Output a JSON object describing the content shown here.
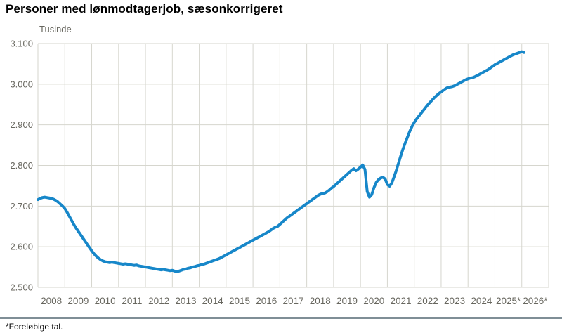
{
  "header": {
    "title": "Personer med lønmodtagerjob, sæsonkorrigeret"
  },
  "footer": {
    "note": "*Foreløbige tal."
  },
  "chart_data": {
    "type": "line",
    "title": "Personer med lønmodtagerjob, sæsonkorrigeret",
    "ylabel": "Tusinde",
    "series_name": "Personer med lønmodtagerjob, sæsonkorrigeret (tusinde)",
    "frequency": "monthly",
    "start": "2008-01",
    "end": "2026-02",
    "values": [
      2716,
      2719,
      2721,
      2722,
      2721,
      2720,
      2719,
      2717,
      2714,
      2710,
      2705,
      2700,
      2694,
      2685,
      2675,
      2665,
      2655,
      2646,
      2638,
      2630,
      2622,
      2614,
      2606,
      2598,
      2590,
      2583,
      2577,
      2572,
      2568,
      2565,
      2563,
      2562,
      2561,
      2562,
      2561,
      2560,
      2559,
      2558,
      2557,
      2558,
      2557,
      2556,
      2555,
      2554,
      2555,
      2553,
      2552,
      2551,
      2550,
      2549,
      2548,
      2547,
      2546,
      2545,
      2544,
      2543,
      2544,
      2543,
      2542,
      2541,
      2542,
      2540,
      2539,
      2540,
      2542,
      2544,
      2545,
      2547,
      2548,
      2550,
      2551,
      2553,
      2554,
      2556,
      2557,
      2559,
      2561,
      2563,
      2565,
      2567,
      2569,
      2571,
      2574,
      2577,
      2580,
      2583,
      2586,
      2589,
      2592,
      2595,
      2598,
      2601,
      2604,
      2607,
      2610,
      2613,
      2616,
      2619,
      2622,
      2625,
      2628,
      2631,
      2634,
      2637,
      2641,
      2645,
      2648,
      2650,
      2655,
      2660,
      2665,
      2670,
      2674,
      2678,
      2682,
      2686,
      2690,
      2694,
      2698,
      2702,
      2706,
      2710,
      2714,
      2718,
      2722,
      2726,
      2729,
      2731,
      2732,
      2735,
      2739,
      2744,
      2748,
      2753,
      2758,
      2763,
      2768,
      2773,
      2778,
      2783,
      2788,
      2792,
      2787,
      2791,
      2796,
      2801,
      2790,
      2736,
      2722,
      2728,
      2745,
      2758,
      2765,
      2769,
      2771,
      2767,
      2753,
      2749,
      2757,
      2772,
      2788,
      2806,
      2824,
      2841,
      2856,
      2870,
      2884,
      2896,
      2906,
      2914,
      2921,
      2928,
      2935,
      2942,
      2949,
      2955,
      2961,
      2967,
      2972,
      2977,
      2981,
      2985,
      2989,
      2992,
      2993,
      2994,
      2996,
      2999,
      3002,
      3005,
      3008,
      3011,
      3013,
      3015,
      3016,
      3018,
      3021,
      3024,
      3027,
      3030,
      3033,
      3036,
      3040,
      3044,
      3048,
      3051,
      3054,
      3057,
      3060,
      3063,
      3066,
      3069,
      3072,
      3074,
      3076,
      3078,
      3080,
      3078
    ],
    "x_tick_labels": [
      "2008",
      "2009",
      "2010",
      "2011",
      "2012",
      "2013",
      "2014",
      "2015",
      "2016",
      "2017",
      "2018",
      "2019",
      "2020",
      "2021",
      "2022",
      "2023",
      "2024",
      "2025*",
      "2026*"
    ],
    "x_axis_years_span": 19,
    "ylim": [
      2500,
      3100
    ],
    "y_ticks": [
      2500,
      2600,
      2700,
      2800,
      2900,
      3000,
      3100
    ],
    "y_tick_labels": [
      "2.500",
      "2.600",
      "2.700",
      "2.800",
      "2.900",
      "3.000",
      "3.100"
    ],
    "grid": true,
    "legend": "none",
    "line_color": "#1787c9",
    "grid_color": "#d6d6ce",
    "tick_label_color": "#68675f",
    "divider_color": "#7f8e96"
  }
}
